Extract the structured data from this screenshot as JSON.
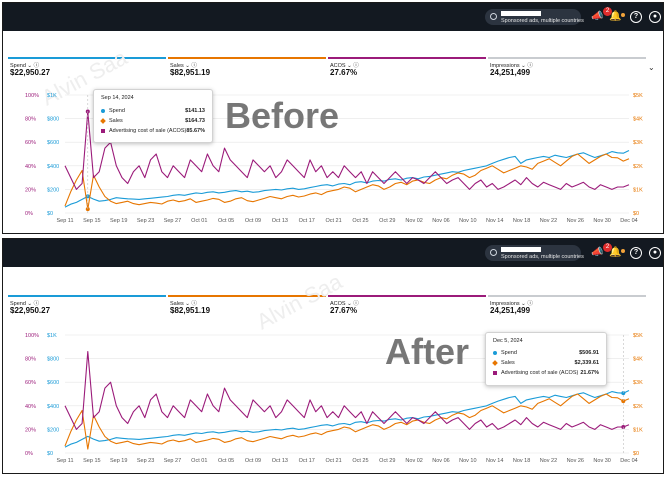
{
  "colors": {
    "spend": "#1a9bd7",
    "sales": "#e77600",
    "acos": "#9b1b7a",
    "dark_bar": "#131921",
    "impressions": "#9aa0a6"
  },
  "topbar": {
    "account_label": "Sponsored ads, multiple countries",
    "notification_count": "2",
    "icons": [
      "megaphone-icon",
      "bell-icon",
      "help-icon",
      "user-icon"
    ]
  },
  "metrics": [
    {
      "label": "Spend",
      "value": "$22,950.27"
    },
    {
      "label": "Sales",
      "value": "$82,951.19"
    },
    {
      "label": "ACOS",
      "value": "27.67%"
    },
    {
      "label": "Impressions",
      "value": "24,251,499"
    }
  ],
  "panels": {
    "before": {
      "label": "Before"
    },
    "after": {
      "label": "After"
    }
  },
  "watermark": "Alvin Saa",
  "axes": {
    "left_pct": [
      "0%",
      "20%",
      "40%",
      "60%",
      "80%",
      "100%"
    ],
    "left_money": [
      "$0",
      "$200",
      "$400",
      "$600",
      "$800",
      "$1K"
    ],
    "right_money": [
      "$0",
      "$1K",
      "$2K",
      "$3K",
      "$4K",
      "$5K"
    ]
  },
  "tooltips": {
    "before": {
      "date": "Sep 14, 2024",
      "rows": [
        {
          "name": "Spend",
          "value": "$141.13"
        },
        {
          "name": "Sales",
          "value": "$164.73"
        },
        {
          "name": "Advertising cost of sale (ACOS)",
          "value": "85.67%"
        }
      ]
    },
    "after": {
      "date": "Dec 5, 2024",
      "rows": [
        {
          "name": "Spend",
          "value": "$506.91"
        },
        {
          "name": "Sales",
          "value": "$2,339.61"
        },
        {
          "name": "Advertising cost of sale (ACOS)",
          "value": "21.67%"
        }
      ]
    }
  },
  "chart_data": {
    "type": "line",
    "xlabels": [
      "Sep 11",
      "Sep 15",
      "Sep 19",
      "Sep 23",
      "Sep 27",
      "Oct 01",
      "Oct 05",
      "Oct 09",
      "Oct 13",
      "Oct 17",
      "Oct 21",
      "Oct 25",
      "Oct 29",
      "Nov 02",
      "Nov 06",
      "Nov 10",
      "Nov 14",
      "Nov 18",
      "Nov 22",
      "Nov 26",
      "Nov 30",
      "Dec 04"
    ],
    "series": [
      {
        "name": "Spend",
        "axis": "left",
        "values": [
          50,
          75,
          90,
          115,
          141,
          118,
          100,
          105,
          115,
          130,
          125,
          120,
          118,
          115,
          120,
          125,
          130,
          135,
          140,
          150,
          155,
          150,
          160,
          170,
          165,
          175,
          180,
          170,
          175,
          185,
          190,
          180,
          185,
          175,
          180,
          190,
          195,
          200,
          195,
          205,
          210,
          200,
          205,
          215,
          225,
          235,
          240,
          230,
          245,
          250,
          240,
          260,
          265,
          255,
          270,
          275,
          270,
          285,
          290,
          280,
          295,
          300,
          290,
          305,
          310,
          320,
          330,
          340,
          350,
          345,
          360,
          370,
          380,
          390,
          400,
          420,
          440,
          455,
          470,
          480,
          420,
          450,
          460,
          470,
          480,
          470,
          490,
          480,
          470,
          485,
          500,
          510,
          490,
          470,
          485,
          500,
          520,
          510,
          507,
          530
        ]
      },
      {
        "name": "Sales",
        "axis": "right",
        "values": [
          300,
          900,
          1400,
          1800,
          165,
          1600,
          1100,
          700,
          500,
          400,
          450,
          500,
          400,
          350,
          400,
          450,
          420,
          380,
          500,
          550,
          480,
          520,
          600,
          450,
          500,
          550,
          620,
          580,
          450,
          500,
          600,
          650,
          520,
          480,
          550,
          620,
          700,
          650,
          600,
          700,
          750,
          680,
          720,
          800,
          850,
          780,
          900,
          950,
          1000,
          1100,
          1050,
          900,
          1000,
          1100,
          1200,
          1150,
          1000,
          1100,
          1250,
          1300,
          1200,
          1350,
          1400,
          1300,
          1250,
          1400,
          1500,
          1450,
          1600,
          1700,
          1650,
          1500,
          1600,
          1800,
          1900,
          2000,
          1850,
          1700,
          1800,
          1900,
          2000,
          1950,
          1850,
          2100,
          2200,
          2300,
          2150,
          2000,
          2200,
          2400,
          2500,
          2300,
          2100,
          2250,
          2400,
          2500,
          2350,
          2340,
          2200,
          2300
        ]
      },
      {
        "name": "Advertising cost of sale (ACOS)",
        "axis": "pct",
        "values": [
          40,
          30,
          20,
          25,
          86,
          30,
          35,
          55,
          60,
          40,
          30,
          25,
          35,
          40,
          30,
          45,
          50,
          35,
          30,
          40,
          35,
          30,
          45,
          40,
          35,
          50,
          40,
          35,
          55,
          45,
          40,
          35,
          30,
          45,
          40,
          35,
          40,
          30,
          35,
          45,
          40,
          35,
          30,
          45,
          35,
          40,
          30,
          35,
          30,
          40,
          35,
          30,
          35,
          25,
          35,
          30,
          25,
          30,
          35,
          30,
          25,
          30,
          28,
          25,
          30,
          35,
          30,
          25,
          28,
          30,
          25,
          20,
          25,
          28,
          22,
          25,
          20,
          22,
          25,
          28,
          24,
          30,
          25,
          22,
          26,
          24,
          22,
          20,
          25,
          22,
          24,
          26,
          22,
          20,
          24,
          22,
          20,
          22,
          22,
          24
        ]
      }
    ],
    "ylim_left": [
      0,
      1000
    ],
    "ylim_right": [
      0,
      5000
    ],
    "ylim_pct": [
      0,
      100
    ],
    "grid": true
  }
}
